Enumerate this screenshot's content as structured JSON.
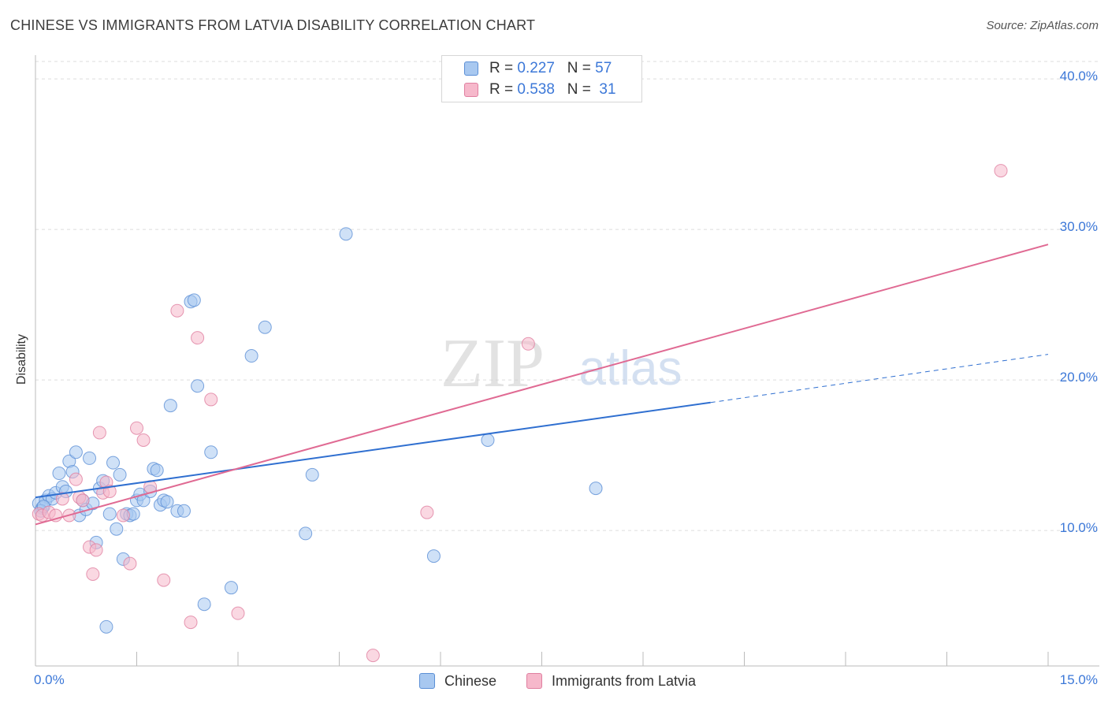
{
  "title": "CHINESE VS IMMIGRANTS FROM LATVIA DISABILITY CORRELATION CHART",
  "source": "Source: ZipAtlas.com",
  "watermark": {
    "zip": "ZIP",
    "atlas": "atlas"
  },
  "colors": {
    "blue_fill": "#a8c8f0",
    "blue_stroke": "#5b8fd6",
    "blue_line": "#2f6fd0",
    "pink_fill": "#f6b8cb",
    "pink_stroke": "#e07fa0",
    "pink_line": "#e06a93",
    "axis_text": "#3c78d8",
    "grid": "#dedede"
  },
  "legend_top": {
    "rows": [
      {
        "r_label": "R = ",
        "r_value": "0.227",
        "n_label": "N = ",
        "n_value": "57"
      },
      {
        "r_label": "R = ",
        "r_value": "0.538",
        "n_label": "N = ",
        "n_value": "31"
      }
    ]
  },
  "legend_bottom": {
    "items": [
      "Chinese",
      "Immigrants from Latvia"
    ]
  },
  "axes": {
    "ylabel": "Disability",
    "x_min_label": "0.0%",
    "x_max_label": "15.0%",
    "y_ticks": [
      "10.0%",
      "20.0%",
      "30.0%",
      "40.0%"
    ]
  },
  "chart_data": {
    "type": "scatter",
    "title": "CHINESE VS IMMIGRANTS FROM LATVIA DISABILITY CORRELATION CHART",
    "xlabel": "",
    "ylabel": "Disability",
    "xlim": [
      0,
      15
    ],
    "ylim": [
      1,
      41
    ],
    "grid": true,
    "legend_placement": "bottom",
    "series": [
      {
        "name": "Chinese",
        "r": 0.227,
        "n": 57,
        "points": [
          [
            0.05,
            11.8
          ],
          [
            0.1,
            11.5
          ],
          [
            0.15,
            12.0
          ],
          [
            0.2,
            12.3
          ],
          [
            0.25,
            12.1
          ],
          [
            0.3,
            12.5
          ],
          [
            0.35,
            13.8
          ],
          [
            0.4,
            12.9
          ],
          [
            0.45,
            12.6
          ],
          [
            0.5,
            14.6
          ],
          [
            0.55,
            13.9
          ],
          [
            0.6,
            15.2
          ],
          [
            0.65,
            11.0
          ],
          [
            0.7,
            12.0
          ],
          [
            0.75,
            11.4
          ],
          [
            0.8,
            14.8
          ],
          [
            0.85,
            11.8
          ],
          [
            0.9,
            9.2
          ],
          [
            0.95,
            12.8
          ],
          [
            1.0,
            13.3
          ],
          [
            1.05,
            3.6
          ],
          [
            1.1,
            11.1
          ],
          [
            1.15,
            14.5
          ],
          [
            1.2,
            10.1
          ],
          [
            1.25,
            13.7
          ],
          [
            1.3,
            8.1
          ],
          [
            1.35,
            11.1
          ],
          [
            1.4,
            11.0
          ],
          [
            1.45,
            11.1
          ],
          [
            1.5,
            12.0
          ],
          [
            1.55,
            12.4
          ],
          [
            1.6,
            12.0
          ],
          [
            1.7,
            12.6
          ],
          [
            1.75,
            14.1
          ],
          [
            1.8,
            14.0
          ],
          [
            1.85,
            11.7
          ],
          [
            1.9,
            12.0
          ],
          [
            1.95,
            11.9
          ],
          [
            2.0,
            18.3
          ],
          [
            2.1,
            11.3
          ],
          [
            2.2,
            11.3
          ],
          [
            2.3,
            25.2
          ],
          [
            2.35,
            25.3
          ],
          [
            2.4,
            19.6
          ],
          [
            2.5,
            5.1
          ],
          [
            2.6,
            15.2
          ],
          [
            2.9,
            6.2
          ],
          [
            3.2,
            21.6
          ],
          [
            3.4,
            23.5
          ],
          [
            4.0,
            9.8
          ],
          [
            4.1,
            13.7
          ],
          [
            4.6,
            29.7
          ],
          [
            5.9,
            8.3
          ],
          [
            6.7,
            16.0
          ],
          [
            8.3,
            12.8
          ],
          [
            0.08,
            11.3
          ],
          [
            0.12,
            11.6
          ]
        ],
        "trend": {
          "x0": 0,
          "y0": 12.2,
          "x1": 10.0,
          "y1": 18.5,
          "dash_x1": 15.0,
          "dash_y1": 21.7
        }
      },
      {
        "name": "Immigrants from Latvia",
        "r": 0.538,
        "n": 31,
        "points": [
          [
            0.05,
            11.1
          ],
          [
            0.1,
            11.0
          ],
          [
            0.2,
            11.2
          ],
          [
            0.3,
            11.0
          ],
          [
            0.4,
            12.1
          ],
          [
            0.5,
            11.0
          ],
          [
            0.6,
            13.4
          ],
          [
            0.65,
            12.2
          ],
          [
            0.7,
            12.0
          ],
          [
            0.8,
            8.9
          ],
          [
            0.85,
            7.1
          ],
          [
            0.9,
            8.7
          ],
          [
            0.95,
            16.5
          ],
          [
            1.0,
            12.5
          ],
          [
            1.05,
            13.2
          ],
          [
            1.1,
            12.6
          ],
          [
            1.3,
            11.0
          ],
          [
            1.4,
            7.8
          ],
          [
            1.5,
            16.8
          ],
          [
            1.6,
            16.0
          ],
          [
            1.7,
            12.9
          ],
          [
            1.9,
            6.7
          ],
          [
            2.1,
            24.6
          ],
          [
            2.3,
            3.9
          ],
          [
            2.4,
            22.8
          ],
          [
            2.6,
            18.7
          ],
          [
            3.0,
            4.5
          ],
          [
            5.0,
            1.7
          ],
          [
            5.8,
            11.2
          ],
          [
            7.3,
            22.4
          ],
          [
            14.3,
            33.9
          ]
        ],
        "trend": {
          "x0": 0,
          "y0": 10.4,
          "x1": 15.0,
          "y1": 29.0
        }
      }
    ]
  }
}
